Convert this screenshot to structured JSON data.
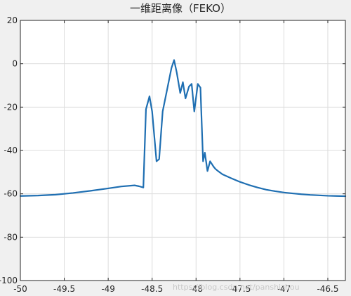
{
  "chart_data": {
    "type": "line",
    "title": "一维距离像（FEKO）",
    "xlim": [
      -50,
      -46.3
    ],
    "ylim": [
      -100,
      20
    ],
    "xticks": [
      -50,
      -49.5,
      -49,
      -48.5,
      -48,
      -47.5,
      -47,
      -46.5
    ],
    "xtick_labels": [
      "-50",
      "-49.5",
      "-49",
      "-48.5",
      "-48",
      "-47.5",
      "-47",
      "-46.5"
    ],
    "yticks": [
      -100,
      -80,
      -60,
      -40,
      -20,
      0,
      20
    ],
    "ytick_labels": [
      "-100",
      "-80",
      "-60",
      "-40",
      "-20",
      "0",
      "20"
    ],
    "grid": true,
    "series": [
      {
        "color": "#1f6fb2",
        "x": [
          -50,
          -49.8,
          -49.6,
          -49.4,
          -49.2,
          -49.0,
          -48.85,
          -48.7,
          -48.65,
          -48.6,
          -48.57,
          -48.53,
          -48.5,
          -48.45,
          -48.42,
          -48.38,
          -48.33,
          -48.28,
          -48.25,
          -48.22,
          -48.18,
          -48.15,
          -48.12,
          -48.08,
          -48.05,
          -48.02,
          -47.98,
          -47.95,
          -47.92,
          -47.9,
          -47.87,
          -47.84,
          -47.8,
          -47.78,
          -47.75,
          -47.7,
          -47.6,
          -47.5,
          -47.4,
          -47.3,
          -47.2,
          -47.1,
          -47.0,
          -46.9,
          -46.8,
          -46.7,
          -46.6,
          -46.5,
          -46.4,
          -46.3
        ],
        "y": [
          -61,
          -60.8,
          -60.4,
          -59.6,
          -58.6,
          -57.5,
          -56.6,
          -56.1,
          -56.5,
          -57.1,
          -21,
          -15,
          -22,
          -45,
          -44,
          -22,
          -12,
          -2,
          1.7,
          -4,
          -13.5,
          -8.5,
          -16,
          -10.5,
          -9.3,
          -22,
          -9.3,
          -11,
          -45,
          -41,
          -49.5,
          -45,
          -47.5,
          -48.5,
          -49.5,
          -51,
          -52.8,
          -54.5,
          -55.9,
          -57.1,
          -58.1,
          -58.8,
          -59.4,
          -59.8,
          -60.2,
          -60.5,
          -60.7,
          -60.9,
          -61,
          -61.1
        ]
      }
    ]
  },
  "watermark": "https://blog.csdn.net/panshizhou"
}
